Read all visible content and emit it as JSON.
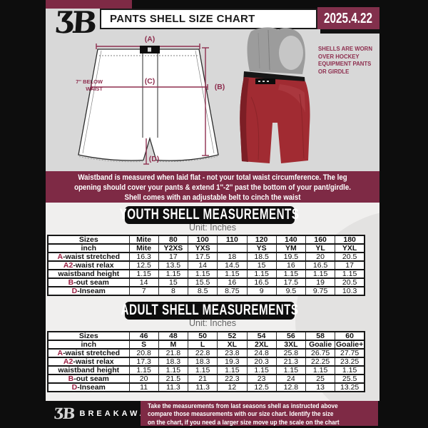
{
  "header": {
    "title": "PANTS SHELL SIZE CHART",
    "date": "2025.4.22",
    "logo_glyph": "ƷB"
  },
  "diagram": {
    "label_a": "(A)",
    "label_b": "(B)",
    "label_c": "(C)",
    "label_d": "(D)",
    "below_waist_note": "7'' BELOW\nWAIST",
    "shells_note": "SHELLS ARE WORN\nOVER HOCKEY\nEQUIPMENT PANTS\nOR GIRDLE"
  },
  "banner": "Waistband is measured when laid flat - not your total waist circumference. The leg\nopening should cover your pants & extend 1''-2'' past the bottom of your pant/girdle.\nShell comes with an adjustable belt to cinch the waist",
  "youth": {
    "heading": "YOUTH SHELL MEASUREMENTS",
    "unit": "Unit: Inches",
    "rows": [
      {
        "prefix": "",
        "label": "Sizes",
        "header": true,
        "values": [
          "Mite",
          "80",
          "100",
          "110",
          "120",
          "140",
          "160",
          "180"
        ]
      },
      {
        "prefix": "",
        "label": "inch",
        "header": true,
        "values": [
          "Mite",
          "Y2XS",
          "YXS",
          "",
          "YS",
          "YM",
          "YL",
          "YXL"
        ]
      },
      {
        "prefix": "A",
        "label": "-waist stretched",
        "values": [
          "16.3",
          "17",
          "17.5",
          "18",
          "18.5",
          "19.5",
          "20",
          "20.5"
        ]
      },
      {
        "prefix": "A2",
        "label": "-waist relax",
        "values": [
          "12.5",
          "13.5",
          "14",
          "14.5",
          "15",
          "16",
          "16.5",
          "17"
        ]
      },
      {
        "prefix": "",
        "label": "waistband height",
        "values": [
          "1.15",
          "1.15",
          "1.15",
          "1.15",
          "1.15",
          "1.15",
          "1.15",
          "1.15"
        ]
      },
      {
        "prefix": "B",
        "label": "-out seam",
        "values": [
          "14",
          "15",
          "15.5",
          "16",
          "16.5",
          "17.5",
          "19",
          "20.5"
        ]
      },
      {
        "prefix": "D",
        "label": "-Inseam",
        "values": [
          "7",
          "8",
          "8.5",
          "8.75",
          "9",
          "9.5",
          "9.75",
          "10.3"
        ]
      }
    ]
  },
  "adult": {
    "heading": "ADULT SHELL MEASUREMENTS",
    "unit": "Unit: Inches",
    "rows": [
      {
        "prefix": "",
        "label": "Sizes",
        "header": true,
        "values": [
          "46",
          "48",
          "50",
          "52",
          "54",
          "56",
          "58",
          "60"
        ]
      },
      {
        "prefix": "",
        "label": "inch",
        "header": true,
        "values": [
          "S",
          "M",
          "L",
          "XL",
          "2XL",
          "3XL",
          "Goalie",
          "Goalie+"
        ]
      },
      {
        "prefix": "A",
        "label": "-waist stretched",
        "values": [
          "20.8",
          "21.8",
          "22.8",
          "23.8",
          "24.8",
          "25.8",
          "26.75",
          "27.75"
        ]
      },
      {
        "prefix": "A2",
        "label": "-waist relax",
        "values": [
          "17.3",
          "18.3",
          "18.3",
          "19.3",
          "20.3",
          "21.3",
          "22.25",
          "23.25"
        ]
      },
      {
        "prefix": "",
        "label": "waistband height",
        "values": [
          "1.15",
          "1.15",
          "1.15",
          "1.15",
          "1.15",
          "1.15",
          "1.15",
          "1.15"
        ]
      },
      {
        "prefix": "B",
        "label": "-out seam",
        "values": [
          "20",
          "21.5",
          "21",
          "22.3",
          "23",
          "24",
          "25",
          "25.5"
        ]
      },
      {
        "prefix": "D",
        "label": "-Inseam",
        "values": [
          "11",
          "11.3",
          "11.3",
          "12",
          "12.5",
          "12.8",
          "13",
          "13.25"
        ]
      }
    ]
  },
  "footer": {
    "brand": "BREAKAWAY",
    "logo_glyph": "ƷB",
    "note": "Take the measurements from last seasons shell as instructed above\ncompare those measurements  with our size chart. Identify the size\non the chart, if you need a larger size move up the scale on the chart"
  },
  "colors": {
    "maroon": "#7e2a45",
    "maroon_bright": "#8e2f4f",
    "date_box": "#82304c",
    "black": "#0d0d0d",
    "page_gray": "#d8d8d8",
    "lower_bg": "#f0efee",
    "shell_red": "#a12b32",
    "pad_gray": "#9c9c9c"
  }
}
